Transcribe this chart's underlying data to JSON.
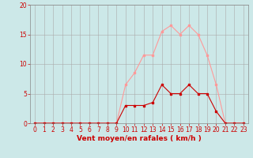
{
  "x_values": [
    0,
    1,
    2,
    3,
    4,
    5,
    6,
    7,
    8,
    9,
    10,
    11,
    12,
    13,
    14,
    15,
    16,
    17,
    18,
    19,
    20,
    21,
    22,
    23
  ],
  "mean_wind": [
    0,
    0,
    0,
    0,
    0,
    0,
    0,
    0,
    0,
    0,
    3,
    3,
    3,
    3.5,
    6.5,
    5,
    5,
    6.5,
    5,
    5,
    2,
    0,
    0,
    0
  ],
  "gust_wind": [
    0,
    0,
    0,
    0,
    0,
    0,
    0,
    0,
    0,
    0,
    6.5,
    8.5,
    11.5,
    11.5,
    15.5,
    16.5,
    15,
    16.5,
    15,
    11.5,
    6.5,
    0,
    0,
    0
  ],
  "mean_color": "#cc0000",
  "gust_color": "#ff9999",
  "bg_color": "#cce8e8",
  "grid_color": "#aaaaaa",
  "xlabel": "Vent moyen/en rafales ( km/h )",
  "ylim": [
    0,
    20
  ],
  "xlim": [
    -0.5,
    23.5
  ],
  "yticks": [
    0,
    5,
    10,
    15,
    20
  ],
  "xticks": [
    0,
    1,
    2,
    3,
    4,
    5,
    6,
    7,
    8,
    9,
    10,
    11,
    12,
    13,
    14,
    15,
    16,
    17,
    18,
    19,
    20,
    21,
    22,
    23
  ],
  "label_fontsize": 6.5,
  "tick_fontsize": 5.5
}
